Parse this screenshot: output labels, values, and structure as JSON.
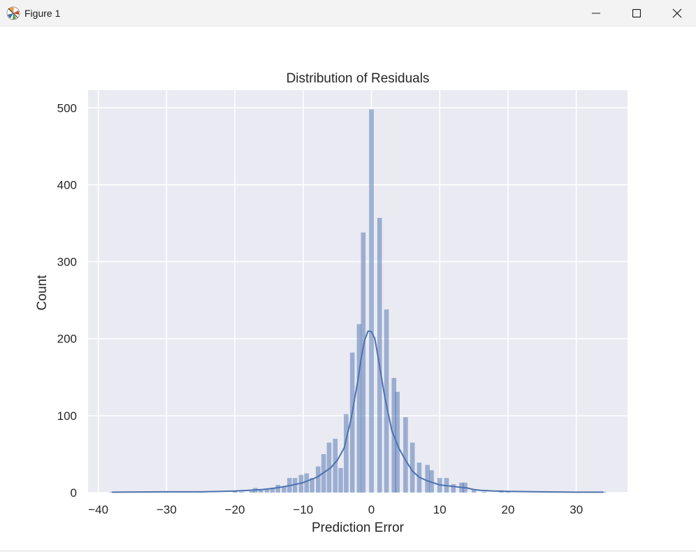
{
  "window": {
    "title": "Figure 1",
    "icons": {
      "app": "matplotlib-icon",
      "minimize": "minimize-icon",
      "maximize": "maximize-icon",
      "close": "close-icon"
    }
  },
  "colors": {
    "bar": "#4c72b0",
    "kde": "#4c72b0",
    "axes_bg": "#eaeaf2",
    "grid": "#ffffff"
  },
  "chart_data": {
    "type": "bar",
    "subtype": "histogram-with-kde",
    "title": "Distribution of Residuals",
    "xlabel": "Prediction Error",
    "ylabel": "Count",
    "xlim": [
      -41.5,
      37.5
    ],
    "ylim": [
      0,
      523
    ],
    "xticks": [
      -40,
      -30,
      -20,
      -10,
      0,
      10,
      20,
      30
    ],
    "xtick_labels": [
      "−40",
      "−30",
      "−20",
      "−10",
      "0",
      "10",
      "20",
      "30"
    ],
    "yticks": [
      0,
      100,
      200,
      300,
      400,
      500
    ],
    "ytick_labels": [
      "0",
      "100",
      "200",
      "300",
      "400",
      "500"
    ],
    "grid": true,
    "bin_width": 0.83,
    "bins": [
      {
        "x": -38.0,
        "count": 1
      },
      {
        "x": -30.0,
        "count": 1
      },
      {
        "x": -25.0,
        "count": 1
      },
      {
        "x": -20.0,
        "count": 3
      },
      {
        "x": -19.0,
        "count": 1
      },
      {
        "x": -17.5,
        "count": 2
      },
      {
        "x": -17.0,
        "count": 6
      },
      {
        "x": -16.2,
        "count": 4
      },
      {
        "x": -15.3,
        "count": 4
      },
      {
        "x": -14.5,
        "count": 5
      },
      {
        "x": -13.7,
        "count": 10
      },
      {
        "x": -12.8,
        "count": 8
      },
      {
        "x": -12.0,
        "count": 19
      },
      {
        "x": -11.2,
        "count": 19
      },
      {
        "x": -10.3,
        "count": 23
      },
      {
        "x": -9.5,
        "count": 25
      },
      {
        "x": -8.7,
        "count": 19
      },
      {
        "x": -7.8,
        "count": 34
      },
      {
        "x": -7.0,
        "count": 50
      },
      {
        "x": -6.2,
        "count": 65
      },
      {
        "x": -5.3,
        "count": 70
      },
      {
        "x": -4.5,
        "count": 32
      },
      {
        "x": -3.7,
        "count": 102
      },
      {
        "x": -2.8,
        "count": 182
      },
      {
        "x": -1.8,
        "count": 219
      },
      {
        "x": -1.2,
        "count": 338
      },
      {
        "x": 0.0,
        "count": 498
      },
      {
        "x": 1.2,
        "count": 357
      },
      {
        "x": 2.2,
        "count": 238
      },
      {
        "x": 3.3,
        "count": 149
      },
      {
        "x": 3.8,
        "count": 131
      },
      {
        "x": 5.0,
        "count": 98
      },
      {
        "x": 6.0,
        "count": 65
      },
      {
        "x": 7.0,
        "count": 39
      },
      {
        "x": 8.2,
        "count": 36
      },
      {
        "x": 8.8,
        "count": 29
      },
      {
        "x": 10.0,
        "count": 19
      },
      {
        "x": 11.0,
        "count": 19
      },
      {
        "x": 12.0,
        "count": 11
      },
      {
        "x": 13.2,
        "count": 13
      },
      {
        "x": 13.7,
        "count": 13
      },
      {
        "x": 15.0,
        "count": 3
      },
      {
        "x": 16.5,
        "count": 1
      },
      {
        "x": 19.0,
        "count": 3
      },
      {
        "x": 20.0,
        "count": 1
      },
      {
        "x": 25.0,
        "count": 1
      },
      {
        "x": 34.0,
        "count": 1
      }
    ],
    "kde": {
      "x": [
        -38,
        -30,
        -25,
        -22,
        -20,
        -18,
        -16,
        -14,
        -12,
        -10,
        -8,
        -6,
        -5,
        -4,
        -3,
        -2,
        -1.5,
        -1,
        -0.5,
        0,
        0.5,
        1,
        1.5,
        2,
        3,
        4,
        5,
        6,
        7,
        8,
        10,
        12,
        14,
        15,
        16,
        18,
        20,
        25,
        30,
        34
      ],
      "y": [
        0.5,
        1,
        1,
        1.5,
        2,
        3,
        4,
        6,
        9,
        13,
        20,
        32,
        42,
        58,
        95,
        145,
        175,
        198,
        210,
        209,
        200,
        175,
        148,
        122,
        80,
        58,
        42,
        28,
        20,
        16,
        10,
        8,
        6,
        4,
        3,
        2,
        1.5,
        1,
        0.5,
        0.5
      ]
    }
  }
}
